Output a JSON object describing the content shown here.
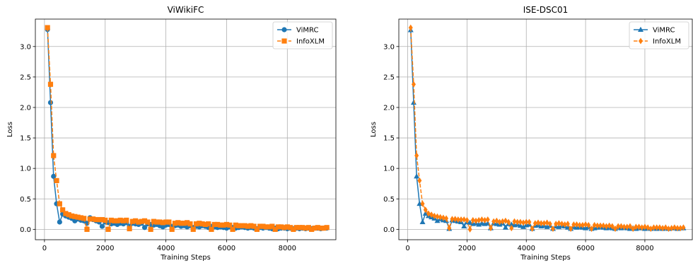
{
  "chart_data": [
    {
      "type": "line",
      "title": "ViWikiFC",
      "xlabel": "Training Steps",
      "ylabel": "Loss",
      "xlim": [
        -300,
        9600
      ],
      "ylim": [
        -0.17,
        3.45
      ],
      "xticks": [
        0,
        2000,
        4000,
        6000,
        8000
      ],
      "xtick_labels": [
        "0",
        "2000",
        "4000",
        "6000",
        "8000"
      ],
      "yticks": [
        0.0,
        0.5,
        1.0,
        1.5,
        2.0,
        2.5,
        3.0
      ],
      "ytick_labels": [
        "0.0",
        "0.5",
        "1.0",
        "1.5",
        "2.0",
        "2.5",
        "3.0"
      ],
      "grid": true,
      "legend": "top-right",
      "series": [
        {
          "name": "ViMRC",
          "color": "#1f77b4",
          "marker": "circle",
          "linestyle": "solid",
          "x": [
            100,
            200,
            300,
            400,
            500,
            600,
            700,
            800,
            900,
            1000,
            1100,
            1200,
            1300,
            1400,
            1500,
            1600,
            1700,
            1800,
            1900,
            2000,
            2100,
            2200,
            2300,
            2400,
            2500,
            2600,
            2700,
            2800,
            2900,
            3000,
            3100,
            3200,
            3300,
            3400,
            3500,
            3600,
            3700,
            3800,
            3900,
            4000,
            4100,
            4200,
            4300,
            4400,
            4500,
            4600,
            4700,
            4800,
            4900,
            5000,
            5100,
            5200,
            5300,
            5400,
            5500,
            5600,
            5700,
            5800,
            5900,
            6000,
            6100,
            6200,
            6300,
            6400,
            6500,
            6600,
            6700,
            6800,
            6900,
            7000,
            7100,
            7200,
            7300,
            7400,
            7500,
            7600,
            7700,
            7800,
            7900,
            8000,
            8100,
            8200,
            8300,
            8400,
            8500,
            8600,
            8700,
            8800,
            8900,
            9000,
            9100,
            9200,
            9300
          ],
          "y": [
            3.28,
            2.08,
            0.87,
            0.42,
            0.12,
            0.25,
            0.22,
            0.2,
            0.18,
            0.14,
            0.17,
            0.15,
            0.14,
            0.1,
            0.19,
            0.16,
            0.14,
            0.12,
            0.05,
            0.12,
            0.11,
            0.09,
            0.1,
            0.08,
            0.1,
            0.09,
            0.11,
            0.05,
            0.1,
            0.09,
            0.08,
            0.1,
            0.03,
            0.09,
            0.08,
            0.07,
            0.08,
            0.06,
            0.04,
            0.07,
            0.08,
            0.05,
            0.06,
            0.07,
            0.05,
            0.06,
            0.04,
            0.06,
            0.03,
            0.05,
            0.04,
            0.06,
            0.05,
            0.03,
            0.05,
            0.04,
            0.03,
            0.04,
            0.03,
            0.02,
            0.04,
            0.03,
            0.02,
            0.03,
            0.04,
            0.03,
            0.02,
            0.03,
            0.02,
            0.01,
            0.03,
            0.02,
            0.03,
            0.02,
            0.01,
            0.02,
            0.01,
            0.02,
            0.02,
            0.01,
            0.02,
            0.01,
            0.02,
            0.01,
            0.02,
            0.01,
            0.02,
            0.01,
            0.02,
            0.02,
            0.01,
            0.02,
            0.02
          ]
        },
        {
          "name": "InfoXLM",
          "color": "#ff7f0e",
          "marker": "square",
          "linestyle": "dashed",
          "x": [
            100,
            200,
            300,
            400,
            500,
            600,
            700,
            800,
            900,
            1000,
            1100,
            1200,
            1300,
            1400,
            1500,
            1600,
            1700,
            1800,
            1900,
            2000,
            2100,
            2200,
            2300,
            2400,
            2500,
            2600,
            2700,
            2800,
            2900,
            3000,
            3100,
            3200,
            3300,
            3400,
            3500,
            3600,
            3700,
            3800,
            3900,
            4000,
            4100,
            4200,
            4300,
            4400,
            4500,
            4600,
            4700,
            4800,
            4900,
            5000,
            5100,
            5200,
            5300,
            5400,
            5500,
            5600,
            5700,
            5800,
            5900,
            6000,
            6100,
            6200,
            6300,
            6400,
            6500,
            6600,
            6700,
            6800,
            6900,
            7000,
            7100,
            7200,
            7300,
            7400,
            7500,
            7600,
            7700,
            7800,
            7900,
            8000,
            8100,
            8200,
            8300,
            8400,
            8500,
            8600,
            8700,
            8800,
            8900,
            9000,
            9100,
            9200,
            9300
          ],
          "y": [
            3.31,
            2.38,
            1.21,
            0.8,
            0.42,
            0.32,
            0.26,
            0.24,
            0.22,
            0.21,
            0.2,
            0.19,
            0.18,
            0.0,
            0.17,
            0.17,
            0.16,
            0.16,
            0.16,
            0.15,
            0.0,
            0.15,
            0.14,
            0.14,
            0.15,
            0.14,
            0.15,
            0.01,
            0.13,
            0.14,
            0.12,
            0.13,
            0.14,
            0.12,
            0.0,
            0.13,
            0.12,
            0.12,
            0.11,
            0.12,
            0.12,
            0.0,
            0.1,
            0.11,
            0.1,
            0.1,
            0.11,
            0.09,
            0.0,
            0.09,
            0.1,
            0.09,
            0.08,
            0.09,
            0.0,
            0.08,
            0.08,
            0.07,
            0.07,
            0.08,
            0.07,
            0.0,
            0.07,
            0.06,
            0.06,
            0.06,
            0.05,
            0.06,
            0.05,
            0.0,
            0.05,
            0.05,
            0.04,
            0.04,
            0.05,
            0.0,
            0.04,
            0.04,
            0.03,
            0.04,
            0.03,
            0.0,
            0.03,
            0.03,
            0.03,
            0.02,
            0.03,
            0.0,
            0.02,
            0.03,
            0.02,
            0.02,
            0.03
          ]
        }
      ]
    },
    {
      "type": "line",
      "title": "ISE-DSC01",
      "xlabel": "Training Steps",
      "ylabel": "Loss",
      "xlim": [
        -300,
        9600
      ],
      "ylim": [
        -0.17,
        3.45
      ],
      "xticks": [
        0,
        2000,
        4000,
        6000,
        8000
      ],
      "xtick_labels": [
        "0",
        "2000",
        "4000",
        "6000",
        "8000"
      ],
      "yticks": [
        0.0,
        0.5,
        1.0,
        1.5,
        2.0,
        2.5,
        3.0
      ],
      "ytick_labels": [
        "0.0",
        "0.5",
        "1.0",
        "1.5",
        "2.0",
        "2.5",
        "3.0"
      ],
      "grid": true,
      "legend": "top-right",
      "series": [
        {
          "name": "ViMRC",
          "color": "#1f77b4",
          "marker": "triangle",
          "linestyle": "solid",
          "x": [
            100,
            200,
            300,
            400,
            500,
            600,
            700,
            800,
            900,
            1000,
            1100,
            1200,
            1300,
            1400,
            1500,
            1600,
            1700,
            1800,
            1900,
            2000,
            2100,
            2200,
            2300,
            2400,
            2500,
            2600,
            2700,
            2800,
            2900,
            3000,
            3100,
            3200,
            3300,
            3400,
            3500,
            3600,
            3700,
            3800,
            3900,
            4000,
            4100,
            4200,
            4300,
            4400,
            4500,
            4600,
            4700,
            4800,
            4900,
            5000,
            5100,
            5200,
            5300,
            5400,
            5500,
            5600,
            5700,
            5800,
            5900,
            6000,
            6100,
            6200,
            6300,
            6400,
            6500,
            6600,
            6700,
            6800,
            6900,
            7000,
            7100,
            7200,
            7300,
            7400,
            7500,
            7600,
            7700,
            7800,
            7900,
            8000,
            8100,
            8200,
            8300,
            8400,
            8500,
            8600,
            8700,
            8800,
            8900,
            9000,
            9100,
            9200,
            9300
          ],
          "y": [
            3.27,
            2.08,
            0.87,
            0.42,
            0.12,
            0.26,
            0.22,
            0.2,
            0.18,
            0.14,
            0.17,
            0.15,
            0.14,
            0.01,
            0.15,
            0.14,
            0.13,
            0.12,
            0.05,
            0.12,
            0.11,
            0.09,
            0.1,
            0.08,
            0.1,
            0.09,
            0.1,
            0.02,
            0.1,
            0.09,
            0.08,
            0.1,
            0.03,
            0.09,
            0.08,
            0.07,
            0.08,
            0.06,
            0.04,
            0.07,
            0.08,
            0.01,
            0.06,
            0.07,
            0.05,
            0.06,
            0.04,
            0.06,
            0.01,
            0.05,
            0.04,
            0.06,
            0.05,
            0.03,
            0.01,
            0.04,
            0.03,
            0.04,
            0.03,
            0.02,
            0.04,
            0.01,
            0.02,
            0.03,
            0.04,
            0.03,
            0.02,
            0.03,
            0.02,
            0.01,
            0.03,
            0.02,
            0.03,
            0.02,
            0.01,
            0.02,
            0.01,
            0.02,
            0.02,
            0.01,
            0.02,
            0.01,
            0.02,
            0.01,
            0.02,
            0.01,
            0.02,
            0.01,
            0.02,
            0.02,
            0.01,
            0.02,
            0.02
          ]
        },
        {
          "name": "InfoXLM",
          "color": "#ff7f0e",
          "marker": "diamond",
          "linestyle": "dashed",
          "x": [
            100,
            200,
            300,
            400,
            500,
            600,
            700,
            800,
            900,
            1000,
            1100,
            1200,
            1300,
            1400,
            1500,
            1600,
            1700,
            1800,
            1900,
            2000,
            2100,
            2200,
            2300,
            2400,
            2500,
            2600,
            2700,
            2800,
            2900,
            3000,
            3100,
            3200,
            3300,
            3400,
            3500,
            3600,
            3700,
            3800,
            3900,
            4000,
            4100,
            4200,
            4300,
            4400,
            4500,
            4600,
            4700,
            4800,
            4900,
            5000,
            5100,
            5200,
            5300,
            5400,
            5500,
            5600,
            5700,
            5800,
            5900,
            6000,
            6100,
            6200,
            6300,
            6400,
            6500,
            6600,
            6700,
            6800,
            6900,
            7000,
            7100,
            7200,
            7300,
            7400,
            7500,
            7600,
            7700,
            7800,
            7900,
            8000,
            8100,
            8200,
            8300,
            8400,
            8500,
            8600,
            8700,
            8800,
            8900,
            9000,
            9100,
            9200,
            9300
          ],
          "y": [
            3.31,
            2.38,
            1.21,
            0.8,
            0.42,
            0.32,
            0.26,
            0.24,
            0.22,
            0.21,
            0.2,
            0.19,
            0.18,
            0.02,
            0.17,
            0.17,
            0.16,
            0.16,
            0.16,
            0.15,
            0.0,
            0.15,
            0.14,
            0.15,
            0.16,
            0.15,
            0.16,
            0.02,
            0.13,
            0.14,
            0.12,
            0.13,
            0.14,
            0.12,
            0.02,
            0.13,
            0.12,
            0.12,
            0.11,
            0.12,
            0.12,
            0.01,
            0.1,
            0.11,
            0.1,
            0.1,
            0.11,
            0.09,
            0.01,
            0.09,
            0.1,
            0.09,
            0.08,
            0.09,
            0.01,
            0.08,
            0.08,
            0.07,
            0.07,
            0.08,
            0.07,
            0.01,
            0.07,
            0.06,
            0.06,
            0.06,
            0.05,
            0.06,
            0.05,
            0.01,
            0.05,
            0.05,
            0.04,
            0.04,
            0.05,
            0.01,
            0.04,
            0.04,
            0.03,
            0.04,
            0.03,
            0.01,
            0.03,
            0.03,
            0.03,
            0.02,
            0.03,
            0.01,
            0.02,
            0.03,
            0.02,
            0.02,
            0.03
          ]
        }
      ]
    }
  ]
}
